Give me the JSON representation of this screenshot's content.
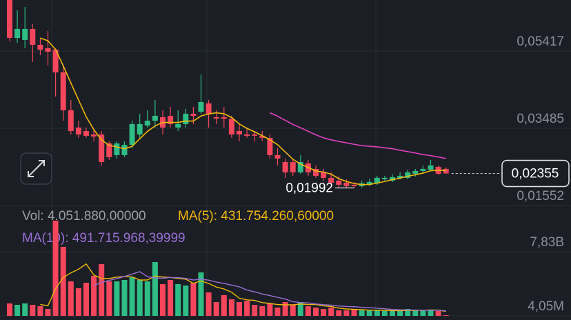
{
  "chart_data": {
    "type": "candlestick",
    "volume_text": "Vol: 4.051.880,00000",
    "ma5_text": "MA(5): 431.754.260,60000",
    "ma10_text": "MA(10): 491.715.968,39999",
    "open": [
      0.06694,
      0.05745,
      0.05694,
      0.0597,
      0.05573,
      0.05487,
      0.05452,
      0.04883,
      0.03934,
      0.03503,
      0.03416,
      0.0333,
      0.0333,
      0.03106,
      0.02813,
      0.02813,
      0.03071,
      0.0333,
      0.03554,
      0.03675,
      0.03762,
      0.03796,
      0.03503,
      0.03589,
      0.03848,
      0.039,
      0.04107,
      0.03762,
      0.03762,
      0.03727,
      0.03416,
      0.0333,
      0.0333,
      0.03296,
      0.03244,
      0.02813,
      0.0264,
      0.0264,
      0.02382,
      0.02606,
      0.02468,
      0.02382,
      0.02244,
      0.02175,
      0.02123,
      0.02071,
      0.02037,
      0.02071,
      0.02106,
      0.02209,
      0.02175,
      0.02244,
      0.02244,
      0.02347,
      0.02416,
      0.02451,
      0.02519,
      0.02468
    ],
    "high": [
      0.06694,
      0.06435,
      0.06522,
      0.0609,
      0.05745,
      0.05918,
      0.05487,
      0.05055,
      0.04193,
      0.03675,
      0.03503,
      0.03451,
      0.03416,
      0.03158,
      0.03158,
      0.03158,
      0.03675,
      0.03848,
      0.03934,
      0.04193,
      0.03934,
      0.0402,
      0.03934,
      0.03969,
      0.0402,
      0.04831,
      0.04193,
      0.03934,
      0.0402,
      0.03796,
      0.03589,
      0.03503,
      0.03416,
      0.03416,
      0.0333,
      0.02985,
      0.02727,
      0.02692,
      0.02813,
      0.02692,
      0.02554,
      0.02468,
      0.02382,
      0.02295,
      0.02209,
      0.0214,
      0.02175,
      0.02209,
      0.02295,
      0.02295,
      0.0233,
      0.02382,
      0.02451,
      0.02468,
      0.02554,
      0.02692,
      0.02554,
      0.02502
    ],
    "low": [
      0.05659,
      0.05625,
      0.05487,
      0.05142,
      0.05314,
      0.05055,
      0.04279,
      0.03675,
      0.0333,
      0.03244,
      0.03244,
      0.03158,
      0.02554,
      0.02692,
      0.02727,
      0.02761,
      0.02985,
      0.03244,
      0.03503,
      0.03503,
      0.0333,
      0.03503,
      0.03416,
      0.03503,
      0.03589,
      0.03848,
      0.03503,
      0.03589,
      0.03503,
      0.03244,
      0.03158,
      0.03244,
      0.03158,
      0.03158,
      0.02727,
      0.02554,
      0.02244,
      0.02295,
      0.02347,
      0.02295,
      0.02244,
      0.02175,
      0.02002,
      0.02002,
      0.02002,
      0.01992,
      0.02002,
      0.02037,
      0.02071,
      0.02175,
      0.0214,
      0.02209,
      0.02209,
      0.02278,
      0.02347,
      0.02416,
      0.02313,
      0.02347
    ],
    "close": [
      0.05745,
      0.0597,
      0.0597,
      0.05573,
      0.05452,
      0.054,
      0.04883,
      0.03934,
      0.03416,
      0.0333,
      0.03296,
      0.03279,
      0.0264,
      0.02761,
      0.03106,
      0.03071,
      0.03589,
      0.03589,
      0.03675,
      0.03796,
      0.03503,
      0.03589,
      0.03589,
      0.03848,
      0.03796,
      0.04141,
      0.03848,
      0.03727,
      0.03727,
      0.0333,
      0.0333,
      0.03296,
      0.03296,
      0.03244,
      0.02813,
      0.02727,
      0.02382,
      0.02382,
      0.0264,
      0.02382,
      0.02295,
      0.02244,
      0.02123,
      0.02071,
      0.02037,
      0.02037,
      0.02106,
      0.0214,
      0.02244,
      0.02244,
      0.02261,
      0.02295,
      0.02382,
      0.02416,
      0.02468,
      0.02554,
      0.02347,
      0.02355
    ],
    "volume": [
      1516000000,
      1347000000,
      1516000000,
      1347000000,
      1179000000,
      842000000,
      11620000000,
      8420000000,
      4210000000,
      3368000000,
      4042000000,
      4884000000,
      6315000000,
      4210000000,
      4210000000,
      4378000000,
      4715000000,
      4378000000,
      4210000000,
      6568000000,
      3873000000,
      4378000000,
      3873000000,
      3705000000,
      4042000000,
      5305000000,
      2863000000,
      1684000000,
      2526000000,
      2021000000,
      1684000000,
      1852000000,
      1347000000,
      1179000000,
      1516000000,
      1010000000,
      1684000000,
      1347000000,
      1684000000,
      1179000000,
      1010000000,
      842000000,
      1010000000,
      674000000,
      674000000,
      758000000,
      674000000,
      674000000,
      674000000,
      589000000,
      589000000,
      674000000,
      842000000,
      674000000,
      674000000,
      758000000,
      589000000,
      4051880
    ],
    "ylim": [
      0.01552,
      0.06694
    ],
    "yticks": [
      {
        "value": 0.05417,
        "label": "0,05417"
      },
      {
        "value": 0.03485,
        "label": "0,03485"
      },
      {
        "value": 0.01552,
        "label": "0,01552"
      }
    ],
    "y2lim": [
      0,
      13300000000
    ],
    "y2ticks": [
      {
        "value": 7830000000,
        "label": "7,83B"
      },
      {
        "value": 4050000,
        "label": "4,05M"
      }
    ],
    "last_price": {
      "value": 0.02355,
      "label": "0,02355"
    },
    "low_marker": {
      "value": 0.01992,
      "label": "0,01992"
    },
    "up_color": "#2ebd85",
    "down_color": "#f6465d",
    "grid": true
  }
}
